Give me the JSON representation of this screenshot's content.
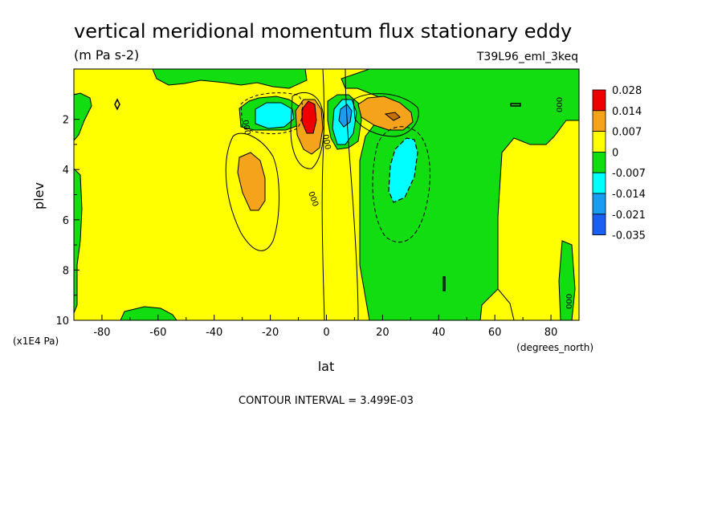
{
  "title": "vertical meridional momentum flux stationary eddy",
  "units": "(m Pa s-2)",
  "run_label": "T39L96_eml_3keq",
  "contour_interval": "CONTOUR INTERVAL = 3.499E-03",
  "colors": {
    "red": "#ee0000",
    "orange": "#f5a31a",
    "yellow": "#ffff00",
    "green": "#11dd11",
    "cyan": "#00ffff",
    "blue_mid": "#1a9cf0",
    "blue": "#1a5ff2",
    "frame": "#000000"
  },
  "chart_data": {
    "type": "heatmap",
    "xlabel": "lat",
    "x_unit": "(degrees_north)",
    "ylabel": "plev",
    "y_unit": "(x1E4 Pa)",
    "xlim": [
      -90,
      90
    ],
    "ylim": [
      10,
      0
    ],
    "x_ticks": [
      -80,
      -60,
      -40,
      -20,
      0,
      20,
      40,
      60,
      80
    ],
    "y_ticks": [
      2,
      4,
      6,
      8,
      10
    ],
    "contour_labels": [
      "000",
      "000",
      "000",
      "000",
      "000"
    ],
    "legend": {
      "levels": [
        "0.028",
        "0.014",
        "0.007",
        "0",
        "-0.007",
        "-0.014",
        "-0.021",
        "-0.035"
      ],
      "colors": [
        "#ee0000",
        "#f5a31a",
        "#ffff00",
        "#11dd11",
        "#00ffff",
        "#1a9cf0",
        "#1a5ff2"
      ]
    },
    "features": [
      {
        "name": "positive core",
        "lat": -7,
        "plev": 2.0,
        "value": 0.028
      },
      {
        "name": "negative core",
        "lat": 7,
        "plev": 2.0,
        "value": -0.014
      },
      {
        "name": "positive lobe",
        "lat": 23,
        "plev": 2.0,
        "value": 0.014
      },
      {
        "name": "negative lobe",
        "lat": -15,
        "plev": 2.0,
        "value": -0.014
      },
      {
        "name": "positive cell",
        "lat": -25,
        "plev": 4.5,
        "value": 0.007
      },
      {
        "name": "negative cell",
        "lat": 28,
        "plev": 4.5,
        "value": -0.007
      }
    ]
  }
}
